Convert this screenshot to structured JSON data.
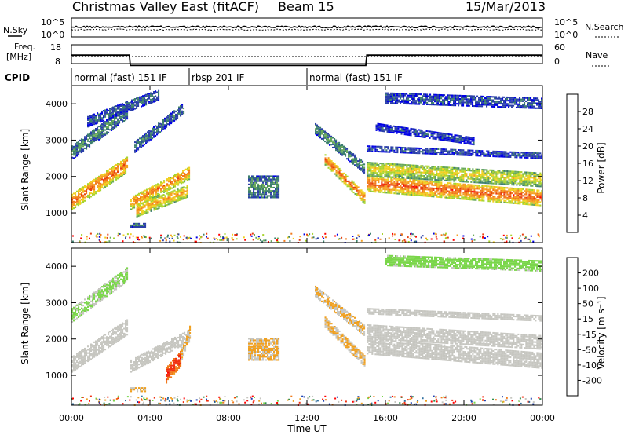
{
  "header": {
    "title": "Christmas Valley East (fitACF)",
    "beam": "Beam 15",
    "date": "15/Mar/2013"
  },
  "top_panels": {
    "nsky_label": "N.Sky",
    "nsearch_label": "N.Search",
    "noise_ticks": [
      "10^5",
      "10^0"
    ],
    "freq_label_1": "Freq.",
    "freq_label_2": "[MHz]",
    "freq_ticks": [
      "18",
      "8"
    ],
    "nave_label": "Nave",
    "nave_ticks": [
      "60",
      "0"
    ],
    "cpid_label": "CPID",
    "cpid_segments": [
      {
        "label": "normal (fast) 151 IF",
        "start_h": 0,
        "end_h": 6
      },
      {
        "label": "rbsp 201 IF",
        "start_h": 6,
        "end_h": 12
      },
      {
        "label": "normal (fast) 151 IF",
        "start_h": 12,
        "end_h": 24
      }
    ],
    "freq_series": [
      [
        0,
        15.0
      ],
      [
        2.95,
        15.0
      ],
      [
        3.0,
        9.5
      ],
      [
        15.0,
        9.5
      ],
      [
        15.05,
        15.0
      ],
      [
        24,
        15.0
      ]
    ]
  },
  "axes": {
    "xlabel": "Time UT",
    "xticks": [
      "00:00",
      "04:00",
      "08:00",
      "12:00",
      "16:00",
      "20:00",
      "00:00"
    ],
    "yticks": [
      "1000",
      "2000",
      "3000",
      "4000"
    ],
    "ylabel_power": "Slant Range [km]",
    "ylabel_velocity": "Slant Range [km]"
  },
  "colorbars": {
    "power_label": "Power [dB]",
    "power_ticks": [
      "28",
      "24",
      "20",
      "16",
      "12",
      "8",
      "4"
    ],
    "power_colors": [
      "#0000e6",
      "#2a3fa8",
      "#3d7f6e",
      "#67a85a",
      "#a8d42c",
      "#f0d020",
      "#f5a020",
      "#f27a1a",
      "#e84010",
      "#ff0000"
    ],
    "velocity_label": "Velocity [m s⁻¹]",
    "velocity_ticks": [
      "200",
      "100",
      "50",
      "15",
      "-15",
      "-50",
      "-100",
      "-200"
    ],
    "velocity_colors": [
      "#1b3fb0",
      "#2f6fa0",
      "#2f8f4f",
      "#7ad64a",
      "#c6c6c0",
      "#f0a020",
      "#f07a1a",
      "#f03010",
      "#ff0000"
    ]
  },
  "chart_data": [
    {
      "type": "heatmap",
      "title": "",
      "quantity": "Power",
      "unit": "dB",
      "xlabel": "Time UT",
      "ylabel": "Slant Range [km]",
      "xlim": [
        0,
        24
      ],
      "ylim": [
        180,
        4500
      ],
      "clim": [
        0,
        32
      ],
      "features": [
        {
          "t": [
            0.0,
            2.9
          ],
          "r0": [
            1300,
            2350
          ],
          "thick": 450,
          "val": 26
        },
        {
          "t": [
            3.0,
            6.0
          ],
          "r0": [
            1250,
            2100
          ],
          "thick": 350,
          "val": 24
        },
        {
          "t": [
            3.3,
            5.9
          ],
          "r0": [
            1050,
            1600
          ],
          "thick": 350,
          "val": 22
        },
        {
          "t": [
            3.0,
            3.8
          ],
          "r0": [
            650,
            650
          ],
          "thick": 120,
          "val": 9
        },
        {
          "t": [
            0.0,
            2.9
          ],
          "r0": [
            2650,
            3800
          ],
          "thick": 400,
          "val": 9
        },
        {
          "t": [
            0.8,
            4.5
          ],
          "r0": [
            3500,
            4250
          ],
          "thick": 300,
          "val": 7
        },
        {
          "t": [
            3.2,
            5.8
          ],
          "r0": [
            2800,
            3900
          ],
          "thick": 300,
          "val": 8
        },
        {
          "t": [
            9.0,
            10.6
          ],
          "r0": [
            1700,
            1700
          ],
          "thick": 600,
          "val": 10
        },
        {
          "t": [
            12.9,
            15.0
          ],
          "r0": [
            2450,
            1350
          ],
          "thick": 300,
          "val": 26
        },
        {
          "t": [
            12.4,
            15.0
          ],
          "r0": [
            3300,
            2200
          ],
          "thick": 300,
          "val": 10
        },
        {
          "t": [
            15.05,
            24.0
          ],
          "r0": [
            1800,
            1400
          ],
          "thick": 450,
          "val": 27
        },
        {
          "t": [
            15.05,
            24.0
          ],
          "r0": [
            2200,
            1900
          ],
          "thick": 400,
          "val": 18
        },
        {
          "t": [
            15.05,
            24.0
          ],
          "r0": [
            2750,
            2550
          ],
          "thick": 150,
          "val": 6
        },
        {
          "t": [
            15.5,
            20.5
          ],
          "r0": [
            3350,
            2950
          ],
          "thick": 200,
          "val": 5
        },
        {
          "t": [
            16.0,
            24.0
          ],
          "r0": [
            4150,
            4000
          ],
          "thick": 300,
          "val": 6
        }
      ]
    },
    {
      "type": "heatmap",
      "title": "",
      "quantity": "Velocity",
      "unit": "m s-1",
      "xlabel": "Time UT",
      "ylabel": "Slant Range [km]",
      "xlim": [
        0,
        24
      ],
      "ylim": [
        180,
        4500
      ],
      "clim": [
        -250,
        250
      ],
      "features": [
        {
          "t": [
            0.0,
            2.9
          ],
          "r0": [
            1300,
            2350
          ],
          "thick": 450,
          "val": 0
        },
        {
          "t": [
            3.0,
            6.0
          ],
          "r0": [
            1250,
            2100
          ],
          "thick": 350,
          "val": 0
        },
        {
          "t": [
            4.8,
            5.6
          ],
          "r0": [
            1000,
            1500
          ],
          "thick": 450,
          "val": 180
        },
        {
          "t": [
            5.6,
            6.1
          ],
          "r0": [
            1600,
            2300
          ],
          "thick": 350,
          "val": 40
        },
        {
          "t": [
            3.0,
            3.8
          ],
          "r0": [
            600,
            600
          ],
          "thick": 120,
          "val": 40
        },
        {
          "t": [
            0.0,
            2.9
          ],
          "r0": [
            2650,
            3800
          ],
          "thick": 400,
          "val": -40
        },
        {
          "t": [
            9.0,
            10.6
          ],
          "r0": [
            1700,
            1700
          ],
          "thick": 600,
          "val": 40
        },
        {
          "t": [
            12.9,
            15.0
          ],
          "r0": [
            2450,
            1350
          ],
          "thick": 300,
          "val": 40
        },
        {
          "t": [
            12.4,
            15.0
          ],
          "r0": [
            3300,
            2200
          ],
          "thick": 300,
          "val": 40
        },
        {
          "t": [
            15.05,
            24.0
          ],
          "r0": [
            1800,
            1400
          ],
          "thick": 450,
          "val": 0
        },
        {
          "t": [
            15.05,
            24.0
          ],
          "r0": [
            2200,
            1900
          ],
          "thick": 400,
          "val": 0
        },
        {
          "t": [
            15.05,
            24.0
          ],
          "r0": [
            2750,
            2550
          ],
          "thick": 150,
          "val": 0
        },
        {
          "t": [
            16.0,
            24.0
          ],
          "r0": [
            4150,
            4000
          ],
          "thick": 300,
          "val": -60
        }
      ]
    }
  ]
}
